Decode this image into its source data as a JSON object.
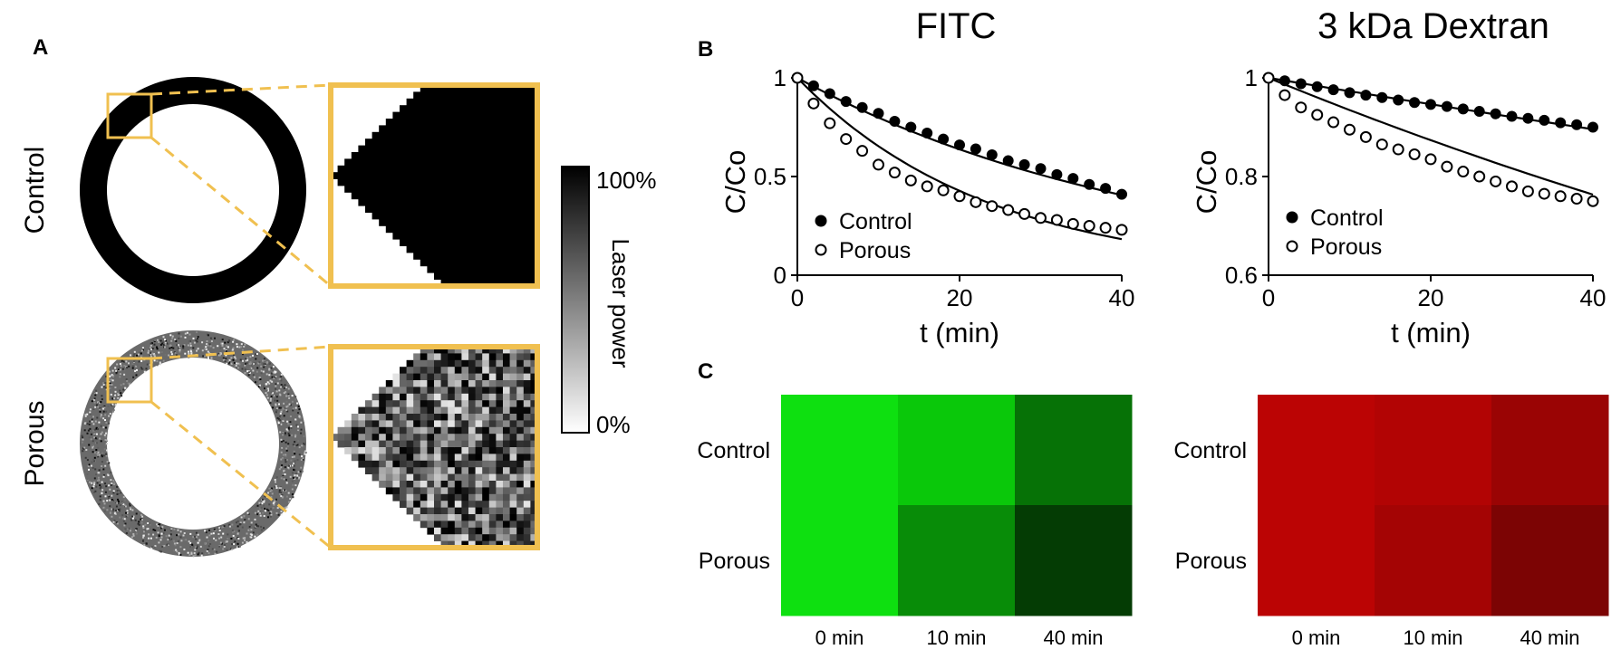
{
  "panel_a": {
    "label": "A",
    "rows": [
      {
        "label": "Control",
        "pattern": "solid"
      },
      {
        "label": "Porous",
        "pattern": "random"
      }
    ],
    "colorbar": {
      "title": "Laser power",
      "max_label": "100%",
      "min_label": "0%"
    },
    "zoom_box_color": "#f0c050"
  },
  "panel_b": {
    "label": "B"
  },
  "panel_c": {
    "label": "C",
    "row_labels": [
      "Control",
      "Porous"
    ],
    "column_labels": [
      "0 min",
      "10 min",
      "40 min"
    ],
    "grids": [
      {
        "name": "FITC",
        "colors": [
          [
            "#0ee010",
            "#0ac80a",
            "#067206"
          ],
          [
            "#0ee010",
            "#088c08",
            "#043c04"
          ]
        ]
      },
      {
        "name": "3 kDa Dextran",
        "colors": [
          [
            "#bb0404",
            "#b20404",
            "#9a0404"
          ],
          [
            "#bb0404",
            "#a40404",
            "#7c0404"
          ]
        ]
      }
    ]
  },
  "chart_data": [
    {
      "type": "scatter",
      "title": "FITC",
      "xlabel": "t (min)",
      "ylabel": "C/Co",
      "xlim": [
        0,
        40
      ],
      "ylim": [
        0,
        1
      ],
      "xticks": [
        0,
        20,
        40
      ],
      "yticks": [
        0,
        0.5,
        1
      ],
      "ytick_labels": [
        "0",
        "0.5",
        "1"
      ],
      "legend": "bottom-left",
      "series": [
        {
          "name": "Control",
          "marker": "filled",
          "x": [
            0,
            2,
            4,
            6,
            8,
            10,
            12,
            14,
            16,
            18,
            20,
            22,
            24,
            26,
            28,
            30,
            32,
            34,
            36,
            38,
            40
          ],
          "y": [
            1.0,
            0.96,
            0.92,
            0.88,
            0.85,
            0.82,
            0.78,
            0.75,
            0.72,
            0.69,
            0.66,
            0.64,
            0.61,
            0.58,
            0.56,
            0.54,
            0.51,
            0.49,
            0.46,
            0.44,
            0.41
          ],
          "fit_x": [
            0,
            40
          ],
          "fit_k": 0.0225
        },
        {
          "name": "Porous",
          "marker": "open",
          "x": [
            0,
            2,
            4,
            6,
            8,
            10,
            12,
            14,
            16,
            18,
            20,
            22,
            24,
            26,
            28,
            30,
            32,
            34,
            36,
            38,
            40
          ],
          "y": [
            1.0,
            0.87,
            0.77,
            0.69,
            0.63,
            0.56,
            0.52,
            0.48,
            0.45,
            0.43,
            0.4,
            0.37,
            0.35,
            0.33,
            0.31,
            0.29,
            0.28,
            0.26,
            0.25,
            0.24,
            0.23
          ],
          "fit_x": [
            0,
            40
          ],
          "fit_k": 0.0425
        }
      ]
    },
    {
      "type": "scatter",
      "title": "3 kDa Dextran",
      "xlabel": "t (min)",
      "ylabel": "C/Co",
      "xlim": [
        0,
        40
      ],
      "ylim": [
        0.6,
        1
      ],
      "xticks": [
        0,
        20,
        40
      ],
      "yticks": [
        0.6,
        0.8,
        1
      ],
      "ytick_labels": [
        "0.6",
        "0.8",
        "1"
      ],
      "legend": "bottom-left",
      "series": [
        {
          "name": "Control",
          "marker": "filled",
          "x": [
            0,
            2,
            4,
            6,
            8,
            10,
            12,
            14,
            16,
            18,
            20,
            22,
            24,
            26,
            28,
            30,
            32,
            34,
            36,
            38,
            40
          ],
          "y": [
            1.0,
            0.994,
            0.988,
            0.982,
            0.976,
            0.97,
            0.965,
            0.96,
            0.955,
            0.95,
            0.946,
            0.942,
            0.937,
            0.932,
            0.927,
            0.922,
            0.918,
            0.914,
            0.909,
            0.905,
            0.9
          ],
          "fit_x": [
            0,
            40
          ],
          "fit_k": 0.00275
        },
        {
          "name": "Porous",
          "marker": "open",
          "x": [
            0,
            2,
            4,
            6,
            8,
            10,
            12,
            14,
            16,
            18,
            20,
            22,
            24,
            26,
            28,
            30,
            32,
            34,
            36,
            38,
            40
          ],
          "y": [
            1.0,
            0.965,
            0.94,
            0.925,
            0.91,
            0.895,
            0.88,
            0.865,
            0.855,
            0.845,
            0.835,
            0.82,
            0.81,
            0.8,
            0.79,
            0.78,
            0.77,
            0.765,
            0.76,
            0.755,
            0.75
          ],
          "fit_x": [
            0,
            40
          ],
          "fit_k": 0.00675
        }
      ]
    }
  ]
}
